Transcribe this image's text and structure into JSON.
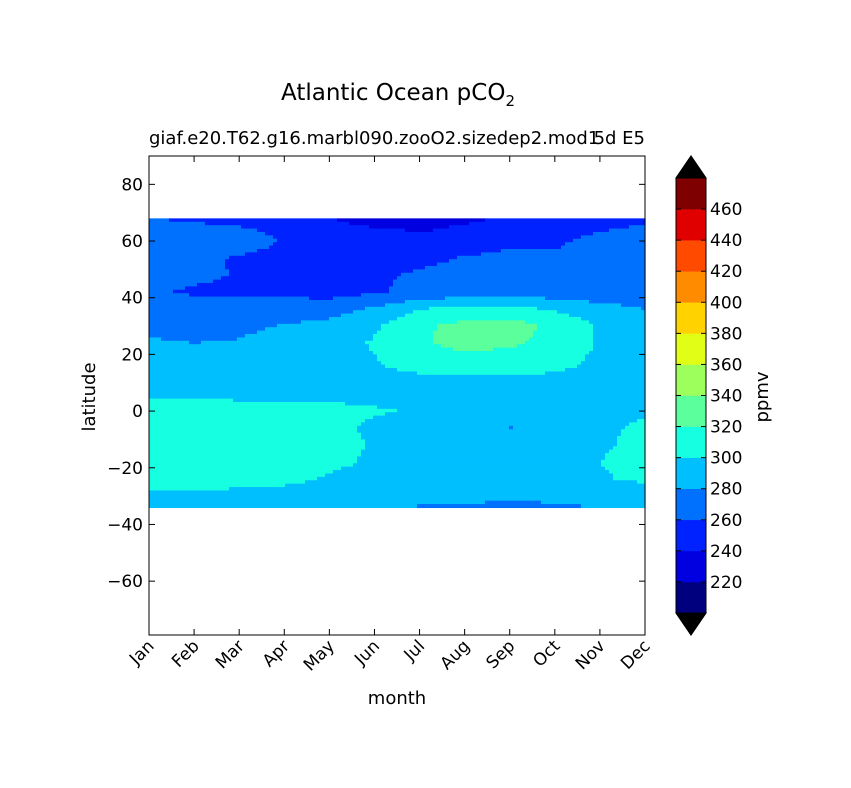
{
  "chart_data": {
    "type": "heatmap",
    "title": "Atlantic Ocean pCO",
    "title_subscript": "2",
    "subtitle_left": "giaf.e20.T62.g16.marbl090.zooO2.sizedep2.mod1",
    "subtitle_right": "5d E5",
    "xlabel": "month",
    "ylabel": "latitude",
    "x_categories": [
      "Jan",
      "Feb",
      "Mar",
      "Apr",
      "May",
      "Jun",
      "Jul",
      "Aug",
      "Sep",
      "Oct",
      "Nov",
      "Dec"
    ],
    "y_ticks": [
      80,
      60,
      40,
      20,
      0,
      -20,
      -40,
      -60
    ],
    "y_tick_labels": [
      "80",
      "60",
      "40",
      "20",
      "0",
      "−20",
      "−40",
      "−60"
    ],
    "ylim": [
      -79,
      90
    ],
    "data_lat_range": [
      -34,
      68
    ],
    "colorbar": {
      "label": "ppmv",
      "levels": [
        200,
        220,
        240,
        260,
        280,
        300,
        320,
        340,
        360,
        380,
        400,
        420,
        440,
        460,
        480
      ],
      "tick_labels": [
        "220",
        "240",
        "260",
        "280",
        "300",
        "320",
        "340",
        "360",
        "380",
        "400",
        "420",
        "440",
        "460"
      ],
      "colors": [
        "#00007f",
        "#0000e0",
        "#0022ff",
        "#0070ff",
        "#00bfff",
        "#16ffe1",
        "#5bff9c",
        "#9cff5b",
        "#e1ff16",
        "#ffd200",
        "#ff8c00",
        "#ff4a00",
        "#e00000",
        "#7f0000"
      ],
      "extend": "both",
      "under_color": "#000000",
      "over_color": "#000000"
    },
    "lat": [
      -34,
      -30,
      -24,
      -18,
      -12,
      -6,
      0,
      6,
      12,
      18,
      24,
      30,
      36,
      42,
      48,
      54,
      60,
      64,
      68
    ],
    "months": [
      1,
      2,
      3,
      4,
      5,
      6,
      7,
      8,
      9,
      10,
      11,
      12
    ],
    "values": [
      [
        284,
        284,
        284,
        284,
        282,
        280,
        279,
        278,
        276,
        276,
        280,
        283
      ],
      [
        295,
        295,
        293,
        290,
        287,
        286,
        285,
        285,
        282,
        286,
        290,
        294
      ],
      [
        312,
        311,
        308,
        306,
        298,
        296,
        295,
        295,
        294,
        296,
        299,
        302
      ],
      [
        315,
        314,
        312,
        308,
        303,
        298,
        297,
        297,
        296,
        298,
        300,
        303
      ],
      [
        311,
        312,
        310,
        307,
        304,
        299,
        297,
        296,
        297,
        298,
        299,
        302
      ],
      [
        307,
        308,
        307,
        306,
        303,
        298,
        297,
        292,
        279,
        295,
        298,
        302
      ],
      [
        304,
        305,
        305,
        304,
        303,
        301,
        299,
        297,
        295,
        295,
        296,
        299
      ],
      [
        298,
        298,
        297,
        297,
        297,
        297,
        298,
        298,
        298,
        297,
        296,
        296
      ],
      [
        296,
        296,
        295,
        295,
        295,
        296,
        297,
        299,
        299,
        297,
        296,
        296
      ],
      [
        288,
        286,
        291,
        295,
        296,
        299,
        311,
        316,
        312,
        307,
        296,
        288
      ],
      [
        282,
        280,
        281,
        286,
        291,
        302,
        318,
        325,
        323,
        314,
        298,
        287
      ],
      [
        276,
        274,
        277,
        281,
        286,
        297,
        316,
        327,
        330,
        314,
        298,
        285
      ],
      [
        270,
        268,
        266,
        269,
        272,
        283,
        300,
        306,
        305,
        298,
        290,
        280
      ],
      [
        262,
        258,
        257,
        256,
        252,
        258,
        264,
        269,
        270,
        268,
        264,
        260
      ],
      [
        266,
        263,
        259,
        257,
        256,
        258,
        262,
        266,
        268,
        265,
        263,
        261
      ],
      [
        264,
        262,
        259,
        256,
        255,
        253,
        256,
        261,
        264,
        262,
        263,
        264
      ],
      [
        276,
        272,
        266,
        259,
        256,
        250,
        248,
        252,
        256,
        258,
        264,
        270
      ],
      [
        266,
        264,
        262,
        257,
        252,
        243,
        238,
        244,
        250,
        254,
        259,
        263
      ],
      [
        260,
        258,
        254,
        247,
        241,
        224,
        228,
        236,
        242,
        248,
        252,
        257
      ]
    ]
  }
}
